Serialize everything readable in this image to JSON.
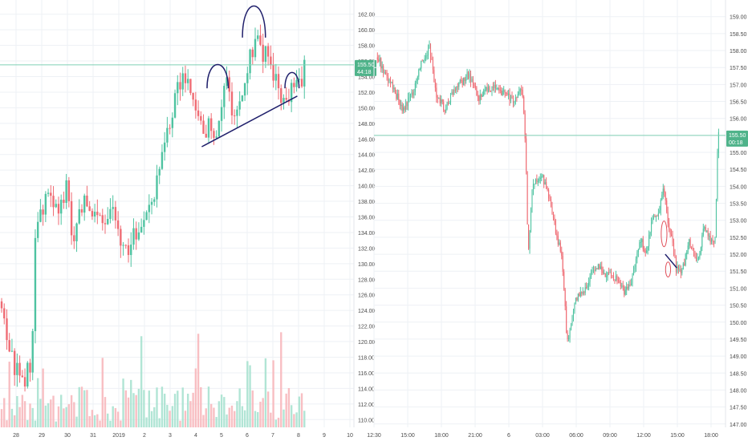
{
  "colors": {
    "up": "#4fc3a1",
    "down": "#ef6c74",
    "up_volume": "#a8e2d0",
    "down_volume": "#f7b8bd",
    "grid": "#eef1f5",
    "axis_text": "#4a4a4a",
    "price_line": "#7fd0b4",
    "price_tag_bg": "#4fb38a",
    "price_tag_text": "#ffffff",
    "annotation_navy": "#1f1f6b",
    "annotation_red": "#e0505a"
  },
  "chart_data": [
    {
      "type": "candlestick",
      "panel": "left",
      "x_labels": [
        "28",
        "29",
        "30",
        "31",
        "2019",
        "2",
        "3",
        "4",
        "5",
        "6",
        "7",
        "8",
        "9",
        "10"
      ],
      "y_ticks": [
        "110.00",
        "112.00",
        "114.00",
        "116.00",
        "118.00",
        "120.00",
        "122.00",
        "124.00",
        "126.00",
        "128.00",
        "130.00",
        "132.00",
        "134.00",
        "136.00",
        "138.00",
        "140.00",
        "142.00",
        "144.00",
        "146.00",
        "148.00",
        "150.00",
        "152.00",
        "154.00",
        "156.00",
        "158.00",
        "160.00",
        "162.00"
      ],
      "ylim": [
        109,
        163
      ],
      "xlim": [
        27.5,
        37.5
      ],
      "last_price": 155.5,
      "last_price_label": "155.50",
      "countdown_label": "44:18",
      "price_path": [
        [
          27.4,
          125
        ],
        [
          27.6,
          123
        ],
        [
          27.9,
          117
        ],
        [
          28.15,
          115
        ],
        [
          28.4,
          117
        ],
        [
          28.5,
          135
        ],
        [
          28.7,
          137
        ],
        [
          28.9,
          139
        ],
        [
          29.05,
          138
        ],
        [
          29.25,
          137
        ],
        [
          29.4,
          142
        ],
        [
          29.5,
          133
        ],
        [
          29.7,
          135
        ],
        [
          29.9,
          139
        ],
        [
          30.0,
          138
        ],
        [
          30.2,
          136
        ],
        [
          30.4,
          135
        ],
        [
          30.6,
          136
        ],
        [
          30.8,
          136
        ],
        [
          30.9,
          132
        ],
        [
          31.1,
          131
        ],
        [
          31.3,
          134
        ],
        [
          31.5,
          135
        ],
        [
          31.7,
          137
        ],
        [
          31.9,
          140
        ],
        [
          32.1,
          145
        ],
        [
          32.3,
          148
        ],
        [
          32.5,
          152
        ],
        [
          32.7,
          154
        ],
        [
          32.9,
          152
        ],
        [
          33.05,
          150
        ],
        [
          33.25,
          147
        ],
        [
          33.45,
          148
        ],
        [
          33.6,
          147
        ],
        [
          33.75,
          150
        ],
        [
          33.9,
          153
        ],
        [
          34.1,
          149
        ],
        [
          34.3,
          150
        ],
        [
          34.45,
          154
        ],
        [
          34.6,
          157
        ],
        [
          34.75,
          159
        ],
        [
          34.9,
          156
        ],
        [
          35.05,
          157
        ],
        [
          35.2,
          155
        ],
        [
          35.4,
          151
        ],
        [
          35.55,
          150
        ],
        [
          35.7,
          152
        ],
        [
          35.85,
          154
        ],
        [
          36.0,
          153
        ],
        [
          36.1,
          155.5
        ]
      ],
      "volume_max": 124,
      "annotations": {
        "trendline": [
          [
            33.2,
            145
          ],
          [
            35.9,
            151.5
          ]
        ],
        "arches": [
          {
            "x1": 33.35,
            "x2": 33.95,
            "y_base": 152.5,
            "y_top": 155.5
          },
          {
            "x1": 34.35,
            "x2": 35.0,
            "y_base": 159,
            "y_top": 163
          },
          {
            "x1": 35.55,
            "x2": 35.95,
            "y_base": 152.5,
            "y_top": 154.5
          }
        ]
      }
    },
    {
      "type": "candlestick",
      "panel": "right",
      "x_labels": [
        "12:30",
        "15:00",
        "18:00",
        "21:00",
        "6",
        "03:00",
        "06:00",
        "09:00",
        "12:00",
        "15:00",
        "18:00"
      ],
      "y_ticks": [
        "147.00",
        "147.50",
        "148.00",
        "148.50",
        "149.00",
        "149.50",
        "150.00",
        "150.50",
        "151.00",
        "151.50",
        "152.00",
        "152.50",
        "153.00",
        "153.50",
        "154.00",
        "154.50",
        "155.00",
        "155.50",
        "156.00",
        "156.50",
        "157.00",
        "157.50",
        "158.00",
        "158.50",
        "159.00"
      ],
      "ylim": [
        146.9,
        159.3
      ],
      "xlim": [
        12.0,
        42.6
      ],
      "last_price": 155.5,
      "last_price_label": "155.50",
      "countdown_label": "00:18",
      "price_path": [
        [
          12.3,
          157.8
        ],
        [
          13.2,
          157.2
        ],
        [
          14.5,
          156.3
        ],
        [
          15.3,
          156.7
        ],
        [
          16.1,
          157.6
        ],
        [
          16.8,
          158.1
        ],
        [
          17.5,
          156.6
        ],
        [
          18.2,
          156.3
        ],
        [
          19.0,
          156.8
        ],
        [
          20.2,
          157.3
        ],
        [
          21.2,
          156.6
        ],
        [
          22.0,
          156.9
        ],
        [
          23.2,
          156.8
        ],
        [
          24.2,
          156.5
        ],
        [
          24.9,
          156.9
        ],
        [
          25.2,
          155.2
        ],
        [
          25.4,
          152.0
        ],
        [
          25.8,
          154.1
        ],
        [
          26.6,
          154.3
        ],
        [
          27.1,
          153.9
        ],
        [
          27.9,
          152.6
        ],
        [
          28.3,
          152.0
        ],
        [
          28.6,
          150.6
        ],
        [
          28.8,
          149.3
        ],
        [
          29.5,
          150.6
        ],
        [
          30.2,
          150.9
        ],
        [
          30.9,
          151.4
        ],
        [
          31.6,
          151.6
        ],
        [
          32.3,
          151.4
        ],
        [
          33.0,
          151.3
        ],
        [
          33.8,
          150.9
        ],
        [
          34.4,
          151.2
        ],
        [
          34.8,
          151.8
        ],
        [
          35.2,
          152.4
        ],
        [
          35.7,
          152.1
        ],
        [
          36.3,
          153.1
        ],
        [
          36.8,
          153.3
        ],
        [
          37.2,
          153.9
        ],
        [
          37.6,
          152.9
        ],
        [
          37.9,
          152.5
        ],
        [
          38.3,
          151.6
        ],
        [
          38.7,
          151.4
        ],
        [
          39.0,
          151.7
        ],
        [
          39.4,
          152.4
        ],
        [
          39.9,
          151.9
        ],
        [
          40.3,
          151.9
        ],
        [
          40.7,
          152.8
        ],
        [
          41.2,
          152.4
        ],
        [
          41.6,
          152.3
        ],
        [
          41.75,
          152.6
        ],
        [
          41.85,
          154.9
        ],
        [
          42.0,
          155.5
        ]
      ],
      "volume_max": 24,
      "annotations": {
        "trendline": [
          [
            37.35,
            152.0
          ],
          [
            38.35,
            151.6
          ]
        ],
        "ellipses": [
          {
            "cx": 37.25,
            "cy": 152.6,
            "rx": 0.25,
            "ry": 0.38
          },
          {
            "cx": 37.6,
            "cy": 151.55,
            "rx": 0.22,
            "ry": 0.22
          }
        ]
      }
    }
  ]
}
